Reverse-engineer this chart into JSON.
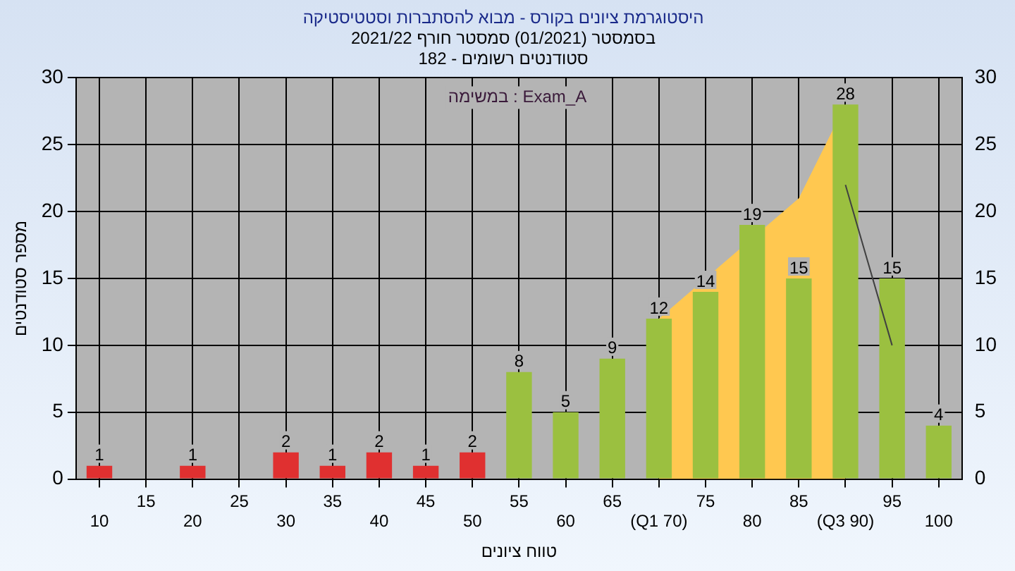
{
  "chart_data": {
    "type": "bar",
    "title": "היסטוגרמת ציונים בקורס - מבוא להסתברות וסטטיסטיקה",
    "subtitle": "בסמסטר (01/2021) סמסטר חורף 2021/22\nסטודנטים רשומים - 182",
    "xlabel": "טווח ציונים",
    "ylabel": "מספר סטודנטים",
    "annotations": [
      "במשימה : Exam_A"
    ],
    "categories": [
      "10",
      "15",
      "20",
      "25",
      "30",
      "35",
      "40",
      "45",
      "50",
      "55",
      "60",
      "65",
      "(Q1 70)",
      "75",
      "80",
      "85",
      "(Q3 90)",
      "95",
      "100"
    ],
    "series": [
      {
        "type": "area",
        "color": "#ffc850",
        "values": [
          null,
          null,
          null,
          null,
          null,
          null,
          null,
          null,
          null,
          null,
          null,
          null,
          12,
          15,
          null,
          21,
          28,
          null,
          null
        ]
      },
      {
        "type": "line",
        "color": "#404040",
        "values": [
          null,
          null,
          null,
          null,
          null,
          null,
          null,
          null,
          null,
          null,
          null,
          null,
          null,
          null,
          null,
          null,
          22,
          10,
          null
        ]
      },
      {
        "colors": [
          "#e03030",
          null,
          "#e03030",
          null,
          "#e03030",
          "#e03030",
          "#e03030",
          "#e03030",
          "#e03030",
          "#9bc040",
          "#9bc040",
          "#9bc040",
          "#9bc040",
          "#9bc040",
          "#9bc040",
          "#9bc040",
          "#9bc040",
          "#9bc040",
          "#9bc040"
        ],
        "values": [
          1,
          null,
          1,
          null,
          2,
          1,
          2,
          1,
          2,
          8,
          5,
          9,
          12,
          14,
          19,
          15,
          28,
          15,
          4
        ],
        "data_labels": true
      }
    ],
    "ylim": [
      0,
      30
    ],
    "yticks": [
      0,
      5,
      10,
      15,
      20,
      25,
      30
    ],
    "y2lim": [
      0,
      30
    ],
    "y2ticks": [
      0,
      5,
      10,
      15,
      20,
      25,
      30
    ],
    "grid": true,
    "legend": false
  }
}
